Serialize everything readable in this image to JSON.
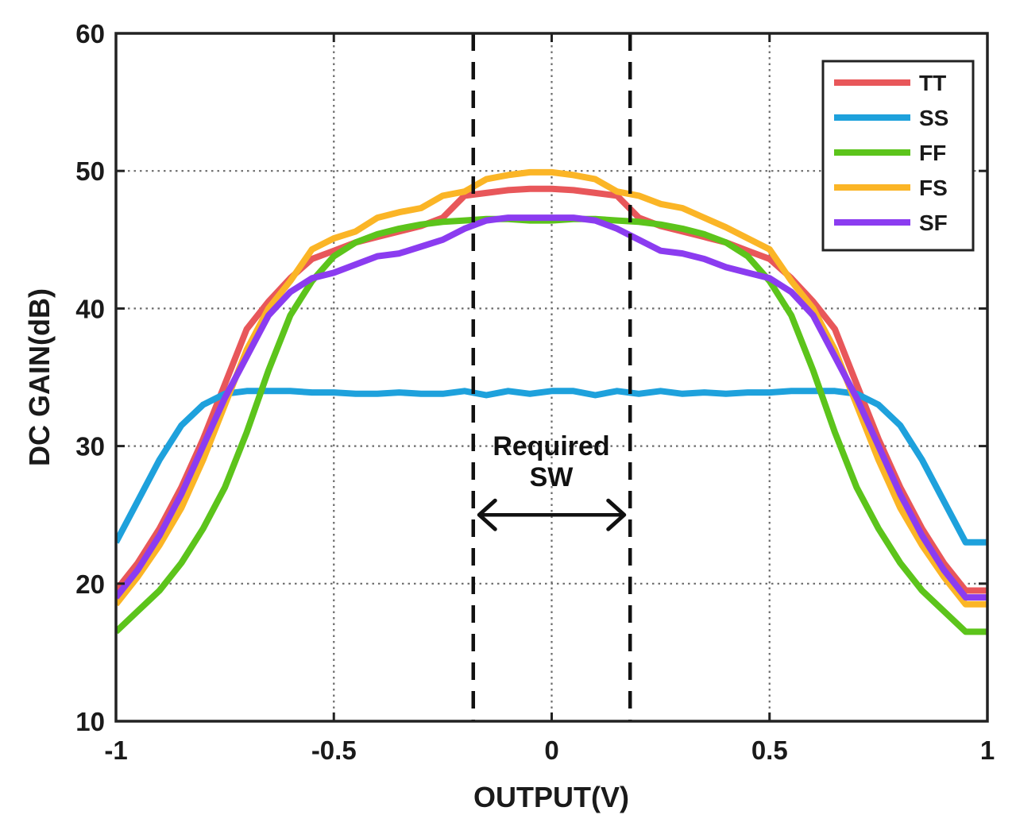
{
  "chart_data": {
    "type": "line",
    "title": "",
    "xlabel": "OUTPUT(V)",
    "ylabel": "DC GAIN(dB)",
    "xlim": [
      -1,
      1
    ],
    "ylim": [
      10,
      60
    ],
    "xticks": [
      -1,
      -0.5,
      0,
      0.5,
      1
    ],
    "xtick_labels": [
      "-1",
      "-0.5",
      "0",
      "0.5",
      "1"
    ],
    "yticks": [
      10,
      20,
      30,
      40,
      50,
      60
    ],
    "ytick_labels": [
      "10",
      "20",
      "30",
      "40",
      "50",
      "60"
    ],
    "grid": true,
    "legend_position": "top-right",
    "x": [
      -1.0,
      -0.95,
      -0.9,
      -0.85,
      -0.8,
      -0.75,
      -0.7,
      -0.65,
      -0.6,
      -0.55,
      -0.5,
      -0.45,
      -0.4,
      -0.35,
      -0.3,
      -0.25,
      -0.2,
      -0.15,
      -0.1,
      -0.05,
      0.0,
      0.05,
      0.1,
      0.15,
      0.2,
      0.25,
      0.3,
      0.35,
      0.4,
      0.45,
      0.5,
      0.55,
      0.6,
      0.65,
      0.7,
      0.75,
      0.8,
      0.85,
      0.9,
      0.95,
      1.0
    ],
    "series": [
      {
        "name": "TT",
        "color": "#e8575a",
        "values": [
          19.5,
          21.5,
          24.0,
          27.0,
          30.5,
          34.5,
          38.5,
          40.5,
          42.2,
          43.6,
          44.2,
          44.8,
          45.2,
          45.6,
          46.0,
          46.6,
          48.2,
          48.4,
          48.6,
          48.7,
          48.7,
          48.6,
          48.4,
          48.2,
          46.6,
          46.0,
          45.6,
          45.2,
          44.8,
          44.2,
          43.6,
          42.2,
          40.5,
          38.5,
          34.5,
          30.5,
          27.0,
          24.0,
          21.5,
          19.5,
          19.5
        ]
      },
      {
        "name": "SS",
        "color": "#1ea1dc",
        "values": [
          23.0,
          26.0,
          29.0,
          31.5,
          33.0,
          33.8,
          34.0,
          34.0,
          34.0,
          33.9,
          33.9,
          33.8,
          33.8,
          33.9,
          33.8,
          33.8,
          34.0,
          33.7,
          34.0,
          33.8,
          34.0,
          34.0,
          33.7,
          34.0,
          33.8,
          34.0,
          33.8,
          33.9,
          33.8,
          33.9,
          33.9,
          34.0,
          34.0,
          34.0,
          33.8,
          33.0,
          31.5,
          29.0,
          26.0,
          23.0,
          23.0
        ]
      },
      {
        "name": "FF",
        "color": "#5cc41b",
        "values": [
          16.5,
          18.0,
          19.5,
          21.5,
          24.0,
          27.0,
          31.0,
          35.5,
          39.5,
          42.0,
          43.8,
          44.8,
          45.4,
          45.8,
          46.1,
          46.3,
          46.4,
          46.5,
          46.5,
          46.4,
          46.4,
          46.5,
          46.5,
          46.4,
          46.3,
          46.1,
          45.8,
          45.4,
          44.8,
          43.8,
          42.0,
          39.5,
          35.5,
          31.0,
          27.0,
          24.0,
          21.5,
          19.5,
          18.0,
          16.5,
          16.5
        ]
      },
      {
        "name": "FS",
        "color": "#fbb526",
        "values": [
          18.5,
          20.5,
          22.8,
          25.5,
          29.0,
          33.0,
          37.0,
          40.0,
          42.0,
          44.3,
          45.1,
          45.6,
          46.6,
          47.0,
          47.3,
          48.2,
          48.5,
          49.4,
          49.7,
          49.9,
          49.9,
          49.7,
          49.4,
          48.5,
          48.2,
          47.6,
          47.3,
          46.6,
          45.9,
          45.1,
          44.3,
          42.0,
          40.0,
          37.0,
          33.0,
          29.0,
          25.5,
          22.8,
          20.5,
          18.5,
          18.5
        ]
      },
      {
        "name": "SF",
        "color": "#8b3cf0",
        "values": [
          19.0,
          21.0,
          23.5,
          26.5,
          30.0,
          33.5,
          36.5,
          39.5,
          41.2,
          42.2,
          42.6,
          43.2,
          43.8,
          44.0,
          44.5,
          45.0,
          45.8,
          46.4,
          46.6,
          46.6,
          46.6,
          46.6,
          46.4,
          45.8,
          45.0,
          44.2,
          44.0,
          43.6,
          43.0,
          42.6,
          42.2,
          41.2,
          39.5,
          36.5,
          33.5,
          30.0,
          26.5,
          23.5,
          21.0,
          19.0,
          19.0
        ]
      }
    ],
    "annotations": {
      "text_line1": "Required",
      "text_line2": "SW",
      "vlines_x": [
        -0.18,
        0.18
      ],
      "arrow_from_x": -0.17,
      "arrow_to_x": 0.17,
      "arrow_y": 25
    }
  }
}
